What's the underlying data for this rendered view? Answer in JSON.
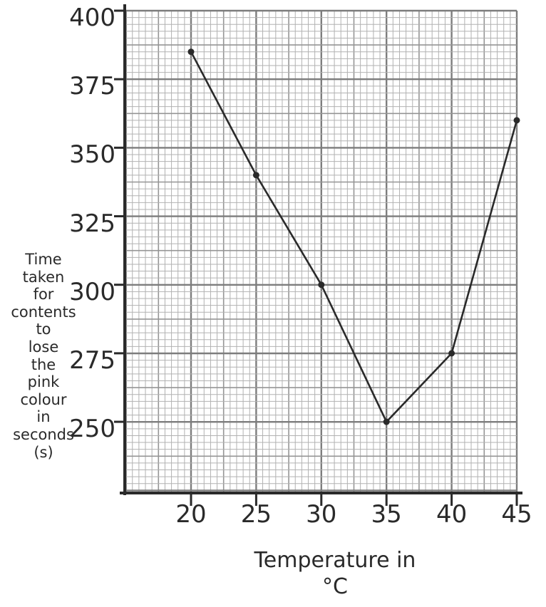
{
  "chart_data": {
    "type": "line",
    "title": "",
    "x": [
      20,
      25,
      30,
      35,
      40,
      45
    ],
    "series": [
      {
        "name": "Time taken for contents to lose the pink colour",
        "values": [
          385,
          340,
          300,
          250,
          275,
          360
        ]
      }
    ],
    "x_ticks": [
      20,
      25,
      30,
      35,
      40,
      45
    ],
    "y_ticks": [
      400,
      375,
      350,
      325,
      300,
      275,
      250
    ],
    "xlabel_lines": [
      "Temperature in",
      "°C"
    ],
    "ylabel_words": [
      "Time",
      "taken",
      "for",
      "contents",
      "to",
      "lose",
      "the",
      "pink",
      "colour",
      "in",
      "seconds",
      "(s)"
    ],
    "xlim": [
      15,
      45
    ],
    "ylim": [
      224,
      400
    ],
    "grid": true,
    "legend": "none",
    "style": "hand-drawn line graph on graph paper",
    "colors": {
      "ink": "#2a2a2a",
      "grid_minor": "#b2b2b2",
      "grid_medium": "#959595",
      "grid_major": "#7d7d7d",
      "paper": "#ffffff"
    }
  }
}
